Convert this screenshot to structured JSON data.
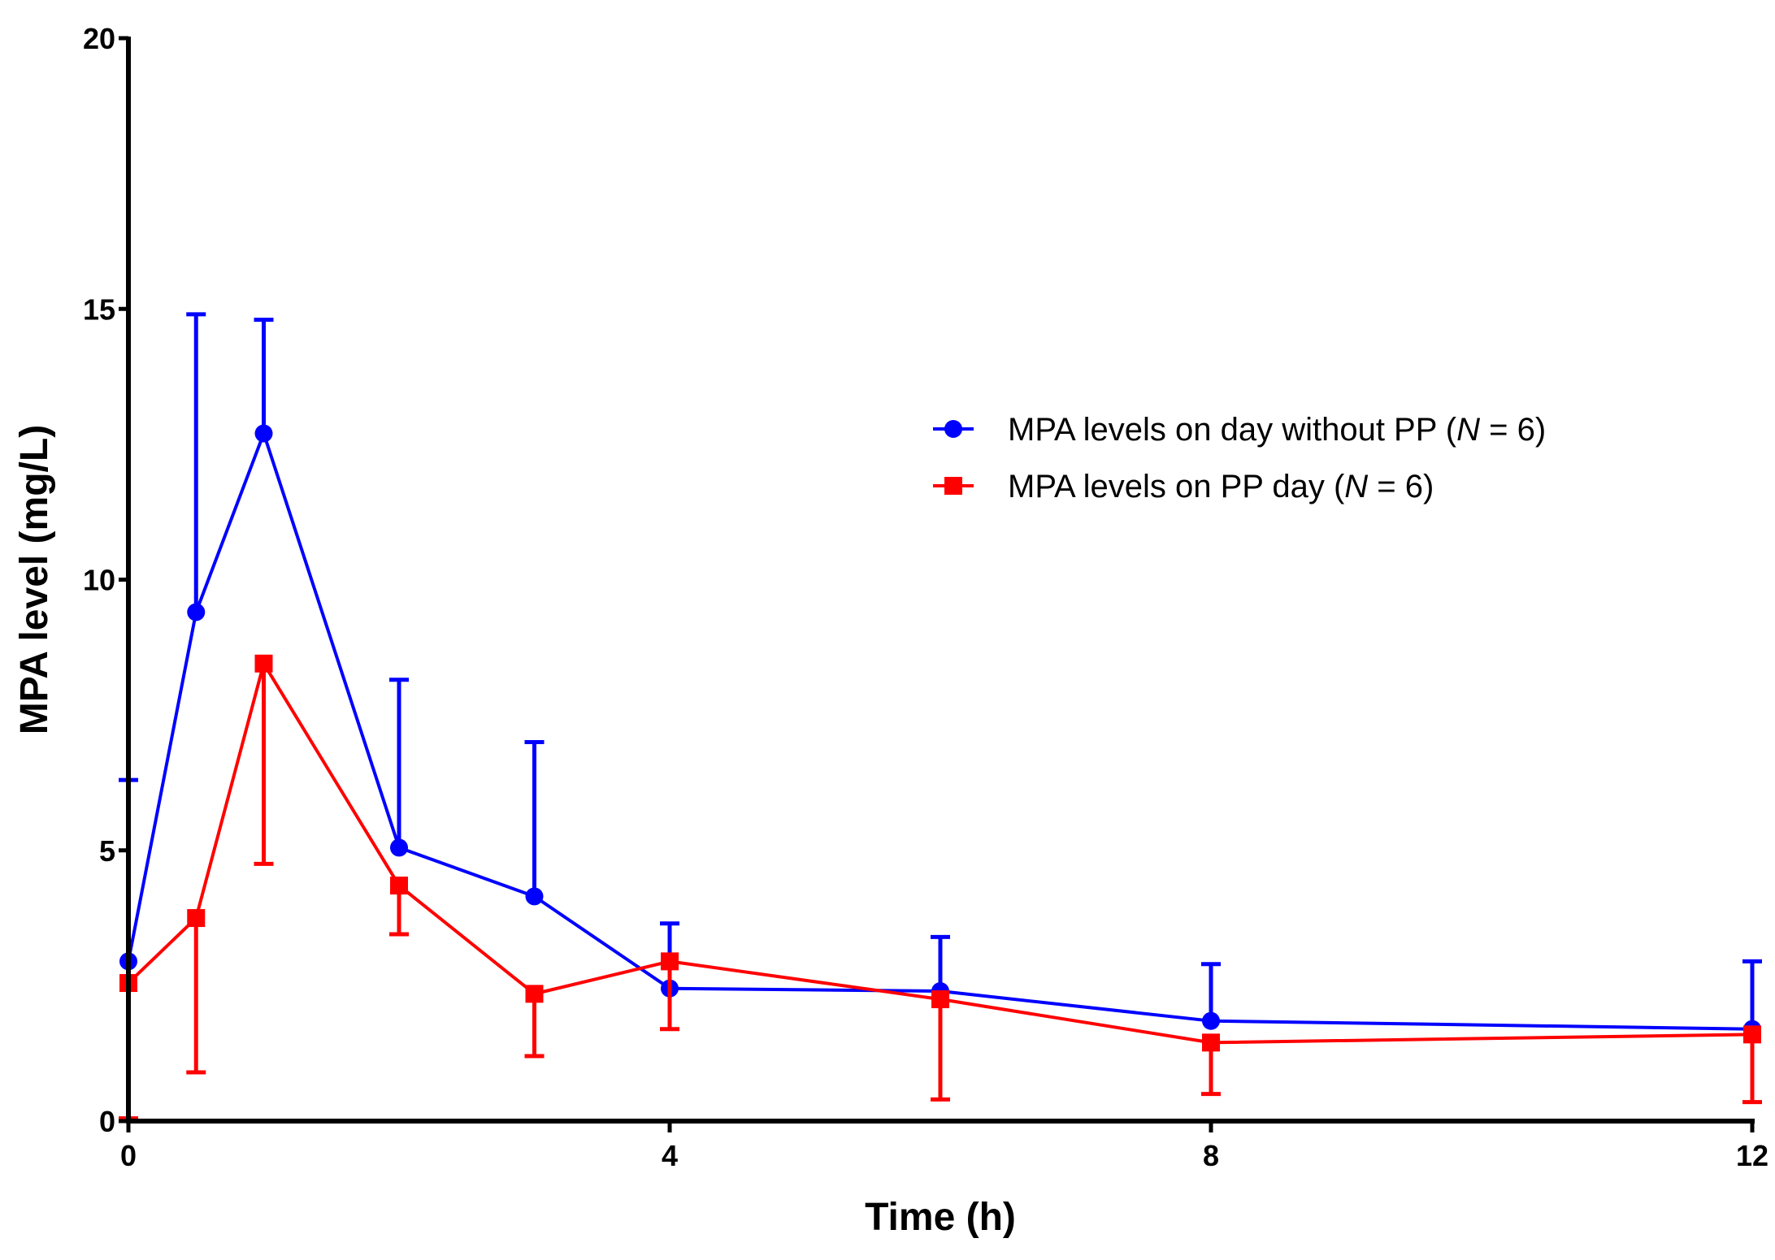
{
  "chart_data": {
    "type": "line",
    "xlabel": "Time (h)",
    "ylabel": "MPA level (mg/L)",
    "xlim": [
      0,
      12
    ],
    "ylim": [
      0,
      20
    ],
    "xticks": [
      0,
      4,
      8,
      12
    ],
    "yticks": [
      0,
      5,
      10,
      15,
      20
    ],
    "grid": false,
    "legend_position": "upper-right",
    "series": [
      {
        "name_prefix": "MPA levels on day without PP (",
        "name_italic": "N",
        "name_suffix": " = 6)",
        "color": "#0000ff",
        "marker": "circle",
        "error_direction": "up",
        "points": [
          {
            "x": 0,
            "y": 2.95,
            "err": 6.3
          },
          {
            "x": 0.5,
            "y": 9.4,
            "err": 14.9
          },
          {
            "x": 1,
            "y": 12.7,
            "err": 14.8
          },
          {
            "x": 2,
            "y": 5.05,
            "err": 8.15
          },
          {
            "x": 3,
            "y": 4.15,
            "err": 7.0
          },
          {
            "x": 4,
            "y": 2.45,
            "err": 3.65
          },
          {
            "x": 6,
            "y": 2.4,
            "err": 3.4
          },
          {
            "x": 8,
            "y": 1.85,
            "err": 2.9
          },
          {
            "x": 12,
            "y": 1.7,
            "err": 2.95
          }
        ]
      },
      {
        "name_prefix": "MPA levels on PP day (",
        "name_italic": "N",
        "name_suffix": " = 6)",
        "color": "#ff0000",
        "marker": "square",
        "error_direction": "down",
        "points": [
          {
            "x": 0,
            "y": 2.55,
            "err": 0.05
          },
          {
            "x": 0.5,
            "y": 3.75,
            "err": 0.9
          },
          {
            "x": 1,
            "y": 8.45,
            "err": 4.75
          },
          {
            "x": 2,
            "y": 4.35,
            "err": 3.45
          },
          {
            "x": 3,
            "y": 2.35,
            "err": 1.2
          },
          {
            "x": 4,
            "y": 2.95,
            "err": 1.7
          },
          {
            "x": 6,
            "y": 2.25,
            "err": 0.4
          },
          {
            "x": 8,
            "y": 1.45,
            "err": 0.5
          },
          {
            "x": 12,
            "y": 1.6,
            "err": 0.35
          }
        ]
      }
    ]
  }
}
